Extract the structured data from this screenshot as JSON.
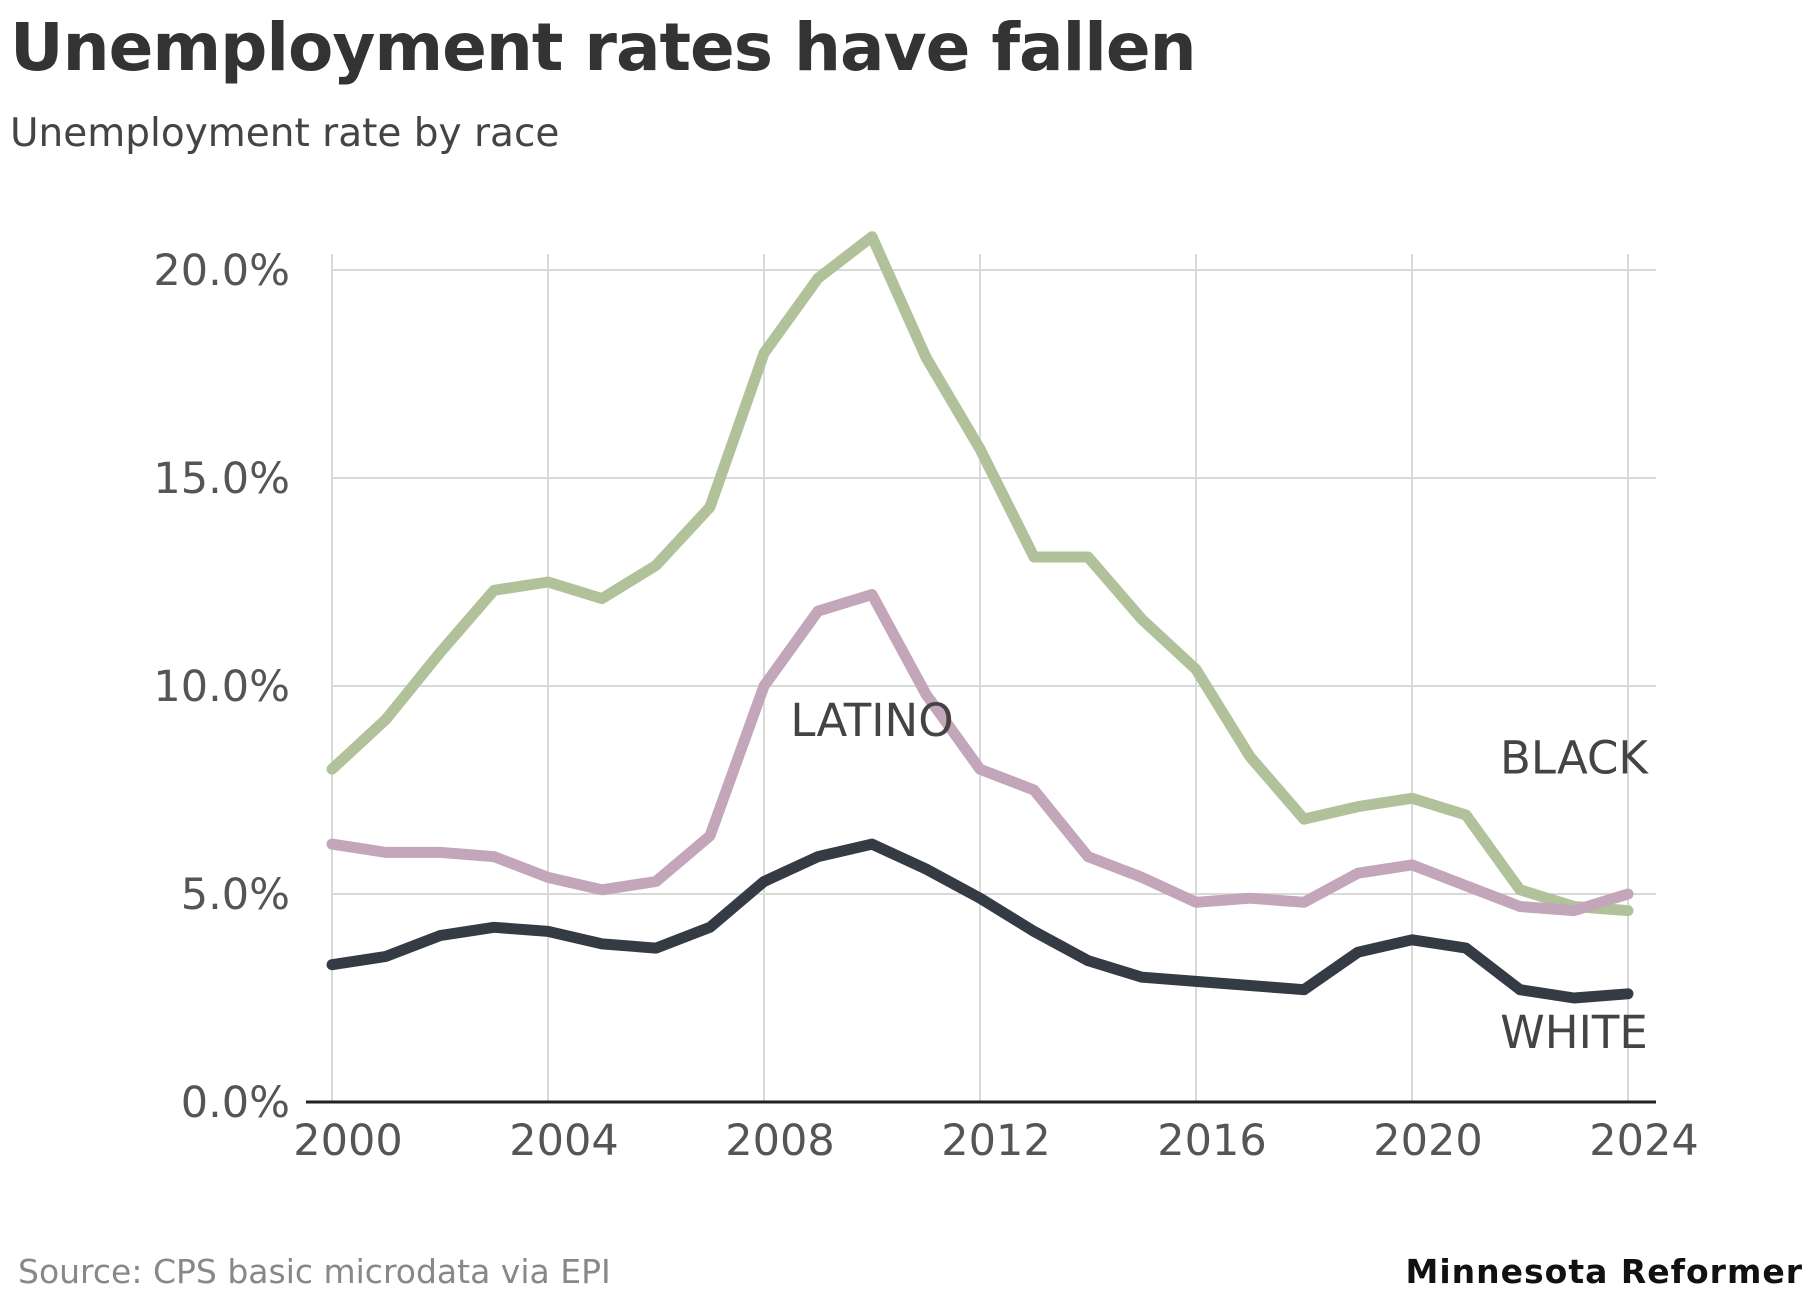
{
  "title": "Unemployment rates have fallen",
  "subtitle": "Unemployment rate by race",
  "source": "Source: CPS basic microdata via EPI",
  "publisher": "Minnesota Reformer",
  "colors": {
    "black_series": "#b1c29b",
    "latino_series": "#c3a6b9",
    "white_series": "#353b45",
    "grid": "#d9d9d9",
    "axis": "#222222"
  },
  "chart_data": {
    "type": "line",
    "title": "Unemployment rates have fallen",
    "subtitle": "Unemployment rate by race",
    "x": [
      2000,
      2001,
      2002,
      2003,
      2004,
      2005,
      2006,
      2007,
      2008,
      2009,
      2010,
      2011,
      2012,
      2013,
      2014,
      2015,
      2016,
      2017,
      2018,
      2019,
      2020,
      2021,
      2022,
      2023,
      2024
    ],
    "series": [
      {
        "name": "BLACK",
        "color": "#b1c29b",
        "values": [
          8.0,
          9.2,
          10.8,
          12.3,
          12.5,
          12.1,
          12.9,
          14.3,
          18.0,
          19.8,
          20.8,
          17.9,
          15.7,
          13.1,
          13.1,
          11.6,
          10.4,
          8.3,
          6.8,
          7.1,
          7.3,
          6.9,
          5.1,
          4.7,
          4.6
        ]
      },
      {
        "name": "LATINO",
        "color": "#c3a6b9",
        "values": [
          6.2,
          6.0,
          6.0,
          5.9,
          5.4,
          5.1,
          5.3,
          6.4,
          10.0,
          11.8,
          12.2,
          9.8,
          8.0,
          7.5,
          5.9,
          5.4,
          4.8,
          4.9,
          4.8,
          5.5,
          5.7,
          5.2,
          4.7,
          4.6,
          5.0
        ]
      },
      {
        "name": "WHITE",
        "color": "#353b45",
        "values": [
          3.3,
          3.5,
          4.0,
          4.2,
          4.1,
          3.8,
          3.7,
          4.2,
          5.3,
          5.9,
          6.2,
          5.6,
          4.9,
          4.1,
          3.4,
          3.0,
          2.9,
          2.8,
          2.7,
          3.6,
          3.9,
          3.7,
          2.7,
          2.5,
          2.6
        ]
      }
    ],
    "xlim": [
      2000,
      2024
    ],
    "ylim": [
      0,
      20
    ],
    "x_ticks": [
      2000,
      2004,
      2008,
      2012,
      2016,
      2020,
      2024
    ],
    "x_tick_labels": [
      "2000",
      "2004",
      "2008",
      "2012",
      "2016",
      "2020",
      "2024"
    ],
    "y_ticks": [
      0,
      5,
      10,
      15,
      20
    ],
    "y_tick_labels": [
      "0.0%",
      "5.0%",
      "10.0%",
      "15.0%",
      "20.0%"
    ],
    "grid": true,
    "legend": "direct labels on lines",
    "series_labels": [
      {
        "text": "LATINO",
        "x": 2010,
        "y": 8.8
      },
      {
        "text": "BLACK",
        "x": 2023,
        "y": 7.9
      },
      {
        "text": "WHITE",
        "x": 2023,
        "y": 1.3
      }
    ]
  }
}
